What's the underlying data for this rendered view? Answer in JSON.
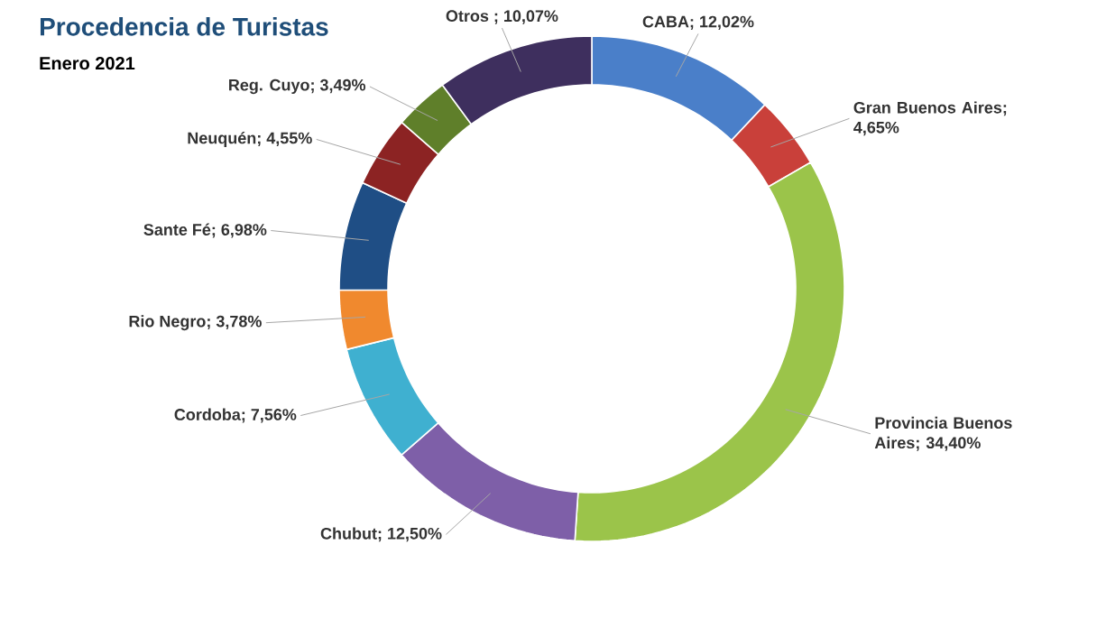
{
  "chart_data": {
    "type": "donut",
    "title": "Procedencia de Turistas",
    "subtitle": "Enero 2021",
    "categories": [
      "CABA",
      "Gran Buenos Aires",
      "Provincia Buenos Aires",
      "Chubut",
      "Cordoba",
      "Rio Negro",
      "Sante Fé",
      "Neuquén",
      "Reg. Cuyo",
      "Otros"
    ],
    "values": [
      12.02,
      4.65,
      34.4,
      12.5,
      7.56,
      3.78,
      6.98,
      4.55,
      3.49,
      10.07
    ],
    "value_labels": [
      "; 12,02%",
      "; 4,65%",
      "; 34,40%",
      "; 12,50%",
      "; 7,56%",
      "; 3,78%",
      "; 6,98%",
      "; 4,55%",
      "; 3,49%",
      " ; 10,07%"
    ],
    "colors": [
      "#4a7fc9",
      "#c9403a",
      "#9bc44a",
      "#7e5fa8",
      "#3fb0d0",
      "#f0892e",
      "#1f4e85",
      "#8c2323",
      "#5f7f2a",
      "#3e2f5e"
    ]
  }
}
